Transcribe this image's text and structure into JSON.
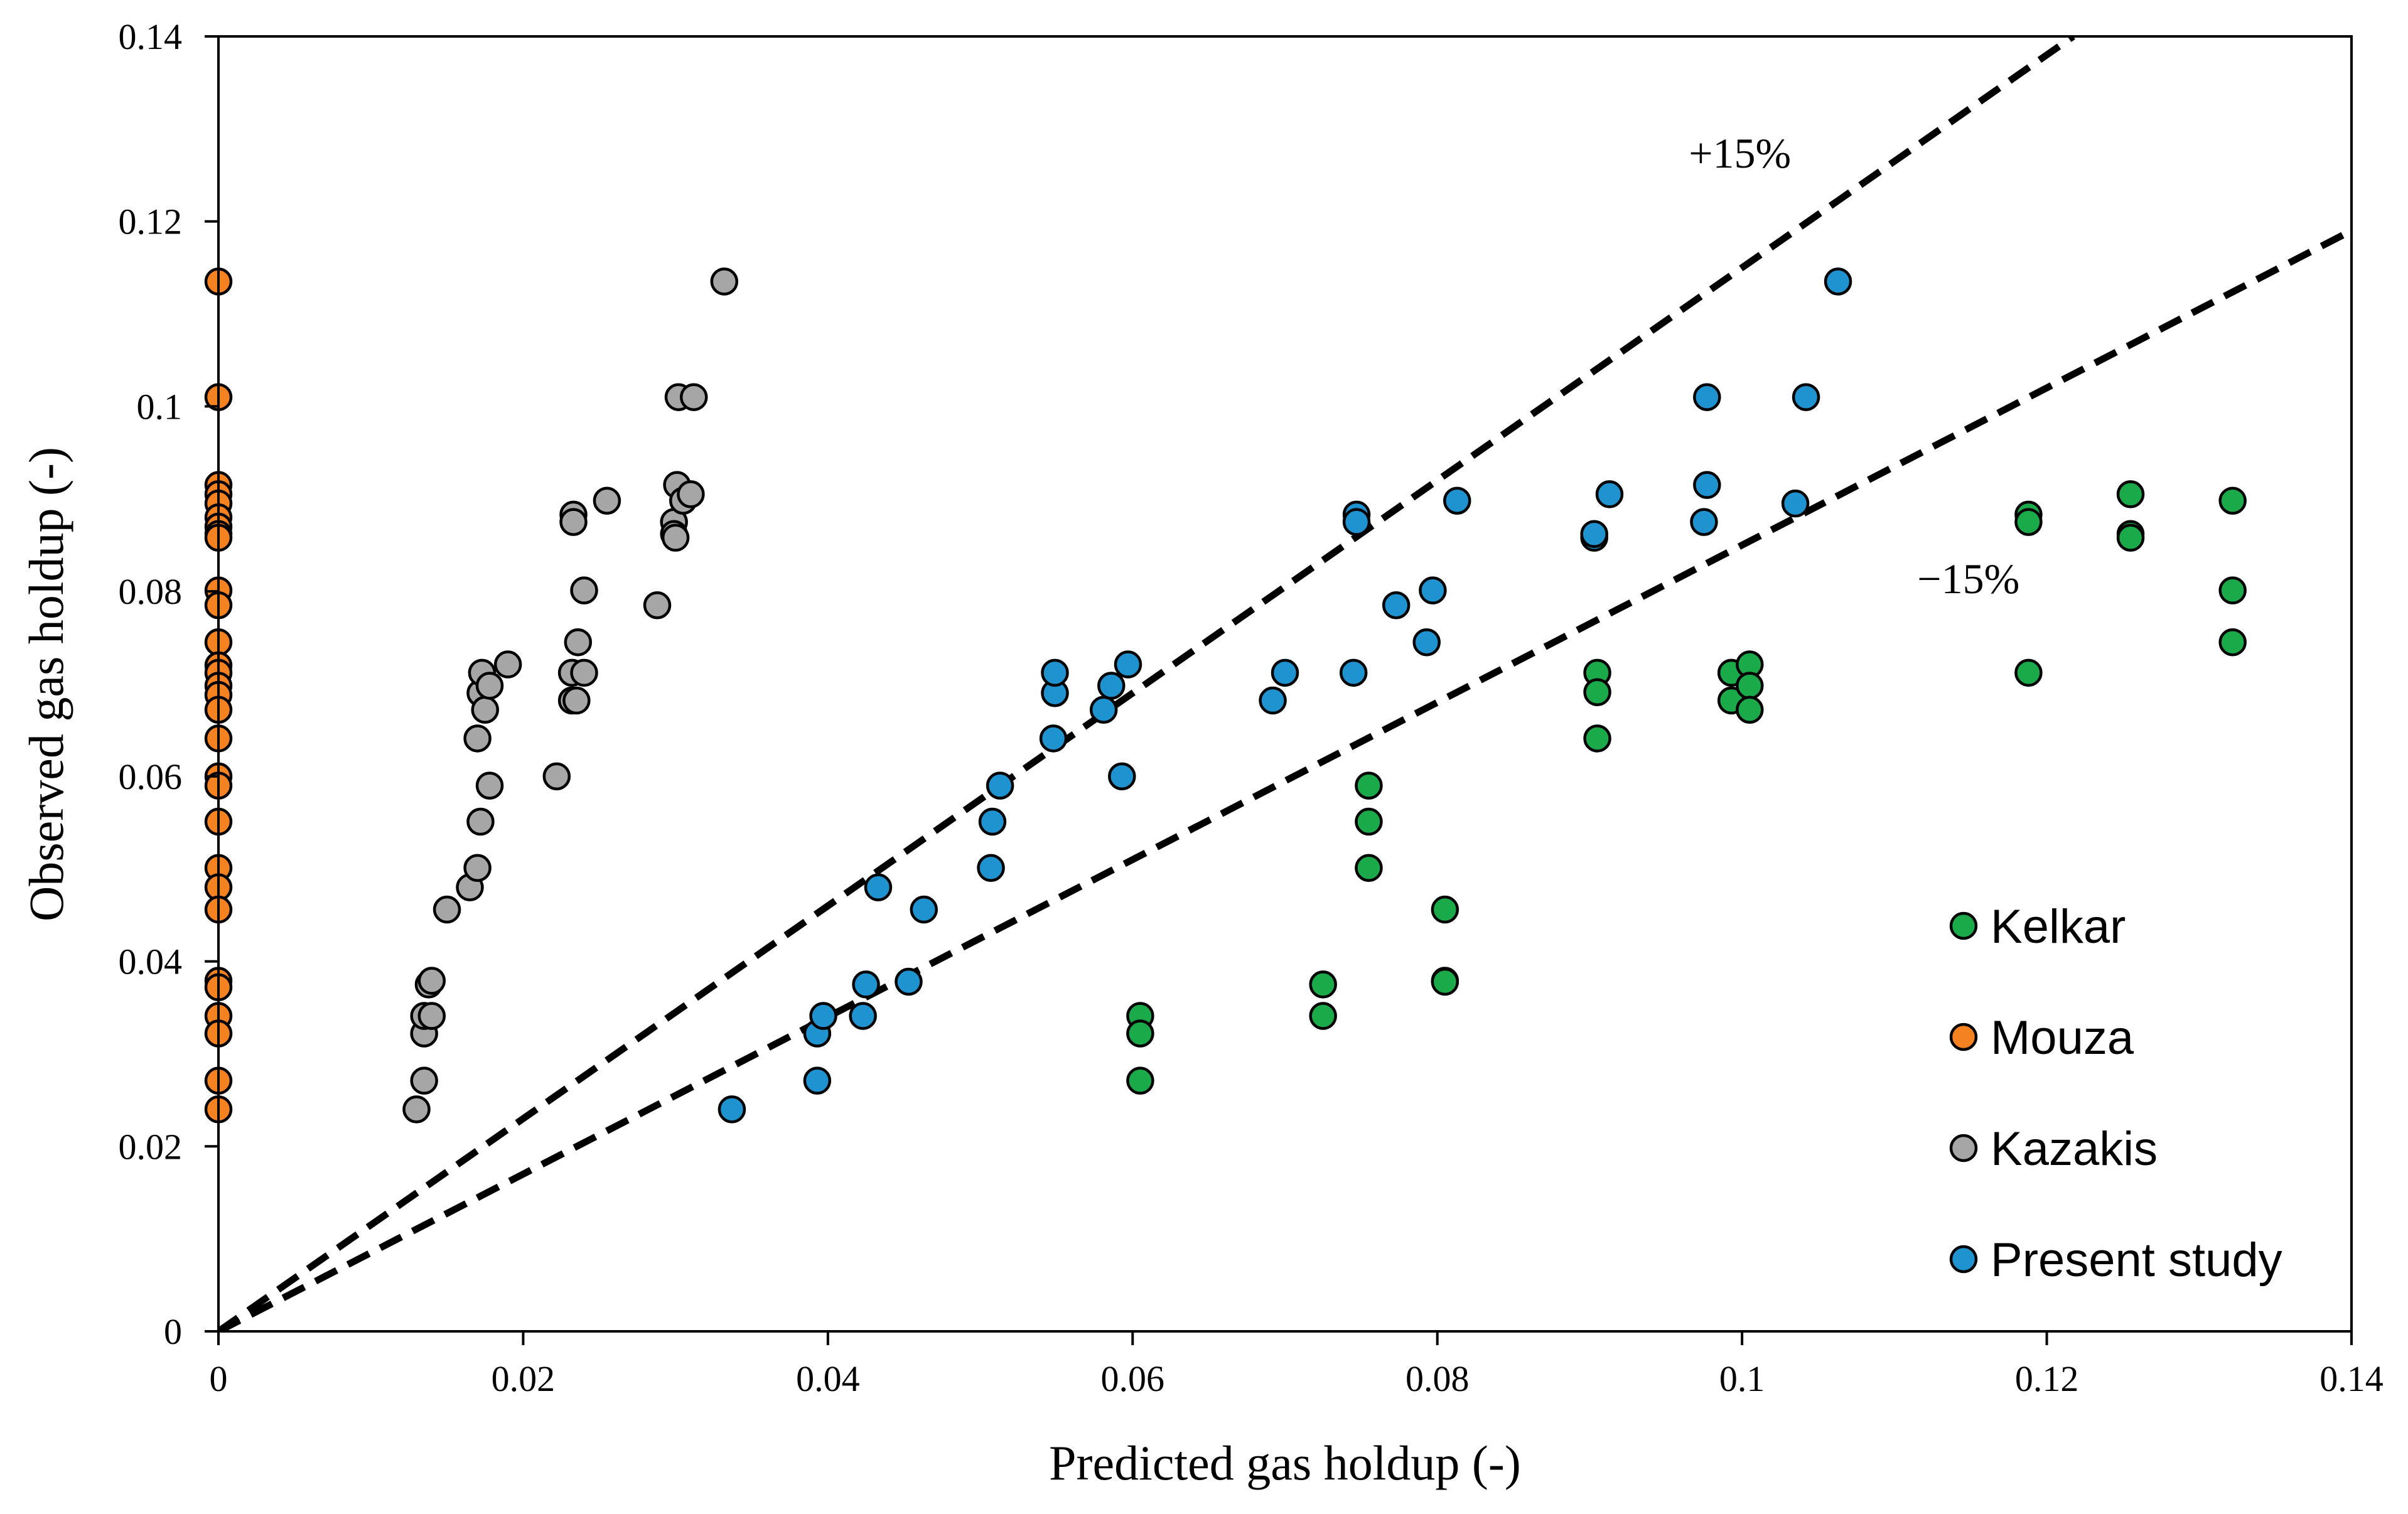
{
  "chart_data": {
    "type": "scatter",
    "title": "",
    "xlabel": "Predicted gas holdup (-)",
    "ylabel": "Observed gas holdup (-)",
    "xlim": [
      0,
      0.14
    ],
    "ylim": [
      0,
      0.14
    ],
    "xticks": [
      0,
      0.02,
      0.04,
      0.06,
      0.08,
      0.1,
      0.12,
      0.14
    ],
    "yticks": [
      0,
      0.02,
      0.04,
      0.06,
      0.08,
      0.1,
      0.12,
      0.14
    ],
    "xtick_labels": [
      "0",
      "0.02",
      "0.04",
      "0.06",
      "0.08",
      "0.1",
      "0.12",
      "0.14"
    ],
    "ytick_labels": [
      "0",
      "0.02",
      "0.04",
      "0.06",
      "0.08",
      "0.1",
      "0.12",
      "0.14"
    ],
    "grid": false,
    "legend_position": "bottom-right",
    "reference_lines": [
      {
        "name": "+15% line",
        "slope": 1.15,
        "style": "dashed",
        "color": "#000000"
      },
      {
        "name": "-15% line",
        "slope": 0.85,
        "style": "dashed",
        "color": "#000000"
      }
    ],
    "annotations": [
      {
        "text": "+15%",
        "x": 0.0965,
        "y": 0.1258
      },
      {
        "text": "−15%",
        "x": 0.1115,
        "y": 0.0798
      }
    ],
    "series": [
      {
        "name": "Kelkar",
        "color": "#1aaa4a",
        "points": [
          [
            0.0605,
            0.0341
          ],
          [
            0.0605,
            0.0322
          ],
          [
            0.0605,
            0.0271
          ],
          [
            0.0725,
            0.0375
          ],
          [
            0.0725,
            0.0341
          ],
          [
            0.0755,
            0.059
          ],
          [
            0.0755,
            0.0551
          ],
          [
            0.0755,
            0.0501
          ],
          [
            0.0805,
            0.0456
          ],
          [
            0.0805,
            0.0379
          ],
          [
            0.0805,
            0.0378
          ],
          [
            0.0905,
            0.0712
          ],
          [
            0.0905,
            0.0691
          ],
          [
            0.0905,
            0.0641
          ],
          [
            0.0993,
            0.0712
          ],
          [
            0.0993,
            0.0682
          ],
          [
            0.1005,
            0.0721
          ],
          [
            0.1005,
            0.0698
          ],
          [
            0.1005,
            0.0672
          ],
          [
            0.1188,
            0.0883
          ],
          [
            0.1188,
            0.0875
          ],
          [
            0.1188,
            0.0712
          ],
          [
            0.1255,
            0.0905
          ],
          [
            0.1255,
            0.0862
          ],
          [
            0.1255,
            0.0858
          ],
          [
            0.1322,
            0.0898
          ],
          [
            0.1322,
            0.0801
          ],
          [
            0.1322,
            0.0745
          ]
        ]
      },
      {
        "name": "Mouza",
        "color": "#f58220",
        "points": [
          [
            0,
            0.1135
          ],
          [
            0,
            0.101
          ],
          [
            0,
            0.0915
          ],
          [
            0,
            0.0905
          ],
          [
            0,
            0.0895
          ],
          [
            0,
            0.088
          ],
          [
            0,
            0.087
          ],
          [
            0,
            0.0862
          ],
          [
            0,
            0.0858
          ],
          [
            0,
            0.0801
          ],
          [
            0,
            0.0785
          ],
          [
            0,
            0.0745
          ],
          [
            0,
            0.072
          ],
          [
            0,
            0.0712
          ],
          [
            0,
            0.0698
          ],
          [
            0,
            0.0688
          ],
          [
            0,
            0.0672
          ],
          [
            0,
            0.0641
          ],
          [
            0,
            0.06
          ],
          [
            0,
            0.059
          ],
          [
            0,
            0.0551
          ],
          [
            0,
            0.0501
          ],
          [
            0,
            0.048
          ],
          [
            0,
            0.0456
          ],
          [
            0,
            0.0379
          ],
          [
            0,
            0.0372
          ],
          [
            0,
            0.0341
          ],
          [
            0,
            0.0322
          ],
          [
            0,
            0.0271
          ],
          [
            0,
            0.024
          ]
        ]
      },
      {
        "name": "Kazakis",
        "color": "#a6a6a6",
        "points": [
          [
            0.013,
            0.024
          ],
          [
            0.0135,
            0.0271
          ],
          [
            0.0135,
            0.0322
          ],
          [
            0.0135,
            0.0341
          ],
          [
            0.0138,
            0.0375
          ],
          [
            0.014,
            0.0341
          ],
          [
            0.014,
            0.0379
          ],
          [
            0.015,
            0.0456
          ],
          [
            0.0165,
            0.048
          ],
          [
            0.017,
            0.0501
          ],
          [
            0.017,
            0.0641
          ],
          [
            0.0172,
            0.0551
          ],
          [
            0.0172,
            0.069
          ],
          [
            0.0173,
            0.0712
          ],
          [
            0.0175,
            0.0672
          ],
          [
            0.0178,
            0.059
          ],
          [
            0.0178,
            0.0698
          ],
          [
            0.019,
            0.0721
          ],
          [
            0.0222,
            0.06
          ],
          [
            0.0232,
            0.0682
          ],
          [
            0.0232,
            0.0712
          ],
          [
            0.0233,
            0.0883
          ],
          [
            0.0233,
            0.0875
          ],
          [
            0.0235,
            0.0682
          ],
          [
            0.0236,
            0.0745
          ],
          [
            0.024,
            0.0801
          ],
          [
            0.024,
            0.0712
          ],
          [
            0.0255,
            0.0898
          ],
          [
            0.0288,
            0.0785
          ],
          [
            0.0299,
            0.0875
          ],
          [
            0.0299,
            0.0862
          ],
          [
            0.03,
            0.0858
          ],
          [
            0.0301,
            0.0915
          ],
          [
            0.0302,
            0.101
          ],
          [
            0.0305,
            0.0898
          ],
          [
            0.031,
            0.0905
          ],
          [
            0.0312,
            0.101
          ],
          [
            0.0332,
            0.1135
          ]
        ]
      },
      {
        "name": "Present study",
        "color": "#1f93d0",
        "points": [
          [
            0.0337,
            0.024
          ],
          [
            0.0393,
            0.0271
          ],
          [
            0.0393,
            0.0322
          ],
          [
            0.0397,
            0.0341
          ],
          [
            0.0423,
            0.0341
          ],
          [
            0.0425,
            0.0375
          ],
          [
            0.0433,
            0.048
          ],
          [
            0.0453,
            0.0378
          ],
          [
            0.0463,
            0.0456
          ],
          [
            0.0507,
            0.0501
          ],
          [
            0.0508,
            0.0551
          ],
          [
            0.0513,
            0.059
          ],
          [
            0.0548,
            0.0641
          ],
          [
            0.0549,
            0.069
          ],
          [
            0.0549,
            0.0712
          ],
          [
            0.0581,
            0.0672
          ],
          [
            0.0586,
            0.0698
          ],
          [
            0.0593,
            0.06
          ],
          [
            0.0597,
            0.0721
          ],
          [
            0.0692,
            0.0682
          ],
          [
            0.07,
            0.0712
          ],
          [
            0.0745,
            0.0712
          ],
          [
            0.0747,
            0.0883
          ],
          [
            0.0747,
            0.0875
          ],
          [
            0.0773,
            0.0785
          ],
          [
            0.0793,
            0.0745
          ],
          [
            0.0797,
            0.0801
          ],
          [
            0.0813,
            0.0898
          ],
          [
            0.0903,
            0.0858
          ],
          [
            0.0903,
            0.0862
          ],
          [
            0.0913,
            0.0905
          ],
          [
            0.0975,
            0.0875
          ],
          [
            0.0977,
            0.101
          ],
          [
            0.0977,
            0.0915
          ],
          [
            0.1035,
            0.0895
          ],
          [
            0.1042,
            0.101
          ],
          [
            0.1063,
            0.1135
          ]
        ]
      }
    ]
  }
}
